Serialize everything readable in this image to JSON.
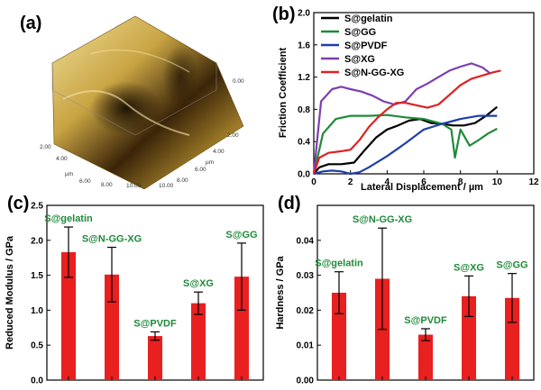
{
  "panels": {
    "a": {
      "label": "(a)"
    },
    "b": {
      "label": "(b)"
    },
    "c": {
      "label": "(c)"
    },
    "d": {
      "label": "(d)"
    }
  },
  "afm": {
    "ticks_left": [
      "2.00",
      "4.00",
      "6.00",
      "8.00",
      "10.00"
    ],
    "ticks_right": [
      "2.00",
      "4.00",
      "6.00",
      "8.00",
      "10.00"
    ],
    "unit_left": "µm",
    "unit_right": "µm",
    "z_tick": "0.00",
    "colors": {
      "light": "#e8d48a",
      "mid": "#b08a2a",
      "dark": "#2a1a05"
    }
  },
  "chart_data": [
    {
      "type": "line",
      "panel": "b",
      "xlabel": "Lateral Displacement / µm",
      "ylabel": "Friction Coefficient",
      "xlim": [
        0,
        12
      ],
      "ylim": [
        0,
        2.0
      ],
      "xticks": [
        "0",
        "2",
        "4",
        "6",
        "8",
        "10",
        "12"
      ],
      "yticks": [
        "0.0",
        "0.4",
        "0.8",
        "1.2",
        "1.6",
        "2.0"
      ],
      "legend_position": "top-right",
      "series": [
        {
          "name": "S@gelatin",
          "color": "#000000",
          "x": [
            0,
            0.3,
            0.8,
            1.5,
            2.2,
            2.8,
            3.4,
            4.0,
            4.6,
            5.2,
            5.8,
            6.4,
            7.0,
            7.6,
            8.2,
            8.8,
            9.4,
            10.0
          ],
          "y": [
            0,
            0.08,
            0.12,
            0.12,
            0.14,
            0.3,
            0.45,
            0.55,
            0.6,
            0.66,
            0.68,
            0.63,
            0.62,
            0.6,
            0.6,
            0.63,
            0.72,
            0.83
          ]
        },
        {
          "name": "S@GG",
          "color": "#1f8a3a",
          "x": [
            0,
            0.5,
            1.2,
            2.0,
            3.0,
            4.0,
            5.0,
            6.0,
            7.0,
            7.5,
            7.7,
            8.0,
            8.5,
            9.0,
            9.5,
            10.0
          ],
          "y": [
            0,
            0.5,
            0.68,
            0.72,
            0.72,
            0.73,
            0.7,
            0.68,
            0.62,
            0.55,
            0.2,
            0.55,
            0.35,
            0.42,
            0.5,
            0.56
          ]
        },
        {
          "name": "S@PVDF",
          "color": "#1f3fa8",
          "x": [
            0,
            0.5,
            1.0,
            1.5,
            2.0,
            2.5,
            3.0,
            3.5,
            4.0,
            4.5,
            5.0,
            6.0,
            7.0,
            8.0,
            9.0,
            10.0
          ],
          "y": [
            0,
            0.03,
            0.04,
            0.03,
            0.0,
            0.02,
            0.08,
            0.15,
            0.22,
            0.3,
            0.38,
            0.55,
            0.62,
            0.68,
            0.72,
            0.72
          ]
        },
        {
          "name": "S@XG",
          "color": "#7b3fb0",
          "x": [
            0,
            0.4,
            1.0,
            1.5,
            2.0,
            2.6,
            3.2,
            3.8,
            4.4,
            5.0,
            5.6,
            6.2,
            6.8,
            7.4,
            8.0,
            8.6,
            9.2,
            9.6
          ],
          "y": [
            0,
            0.9,
            1.05,
            1.08,
            1.05,
            1.02,
            0.97,
            0.9,
            0.86,
            0.9,
            1.05,
            1.12,
            1.2,
            1.28,
            1.33,
            1.37,
            1.32,
            1.25
          ]
        },
        {
          "name": "S@N-GG-XG",
          "color": "#e02020",
          "x": [
            0,
            0.3,
            0.8,
            1.5,
            2.0,
            2.5,
            3.0,
            3.5,
            4.0,
            4.5,
            5.0,
            5.6,
            6.2,
            6.8,
            7.4,
            8.0,
            8.6,
            9.2,
            9.8,
            10.2
          ],
          "y": [
            0,
            0.2,
            0.26,
            0.28,
            0.3,
            0.42,
            0.58,
            0.7,
            0.8,
            0.88,
            0.88,
            0.85,
            0.82,
            0.86,
            0.98,
            1.1,
            1.18,
            1.22,
            1.26,
            1.28
          ]
        }
      ]
    },
    {
      "type": "bar",
      "panel": "c",
      "ylabel": "Reduced Modulus / GPa",
      "ylim": [
        0,
        2.5
      ],
      "yticks": [
        "0.0",
        "0.5",
        "1.0",
        "1.5",
        "2.0",
        "2.5"
      ],
      "bar_color": "#e82020",
      "label_color": "#1f8a3a",
      "categories": [
        "S@gelatin",
        "S@N-GG-XG",
        "S@PVDF",
        "S@XG",
        "S@GG"
      ],
      "values": [
        1.83,
        1.51,
        0.63,
        1.1,
        1.48
      ],
      "errors": [
        0.36,
        0.39,
        0.06,
        0.16,
        0.48
      ]
    },
    {
      "type": "bar",
      "panel": "d",
      "ylabel": "Hardness / GPa",
      "ylim": [
        0,
        0.05
      ],
      "yticks": [
        "0.00",
        "0.01",
        "0.02",
        "0.03",
        "0.04"
      ],
      "bar_color": "#e82020",
      "label_color": "#1f8a3a",
      "categories": [
        "S@gelatin",
        "S@N-GG-XG",
        "S@PVDF",
        "S@XG",
        "S@GG"
      ],
      "values": [
        0.025,
        0.029,
        0.013,
        0.024,
        0.0235
      ],
      "errors": [
        0.006,
        0.0145,
        0.0017,
        0.0058,
        0.007
      ]
    }
  ]
}
